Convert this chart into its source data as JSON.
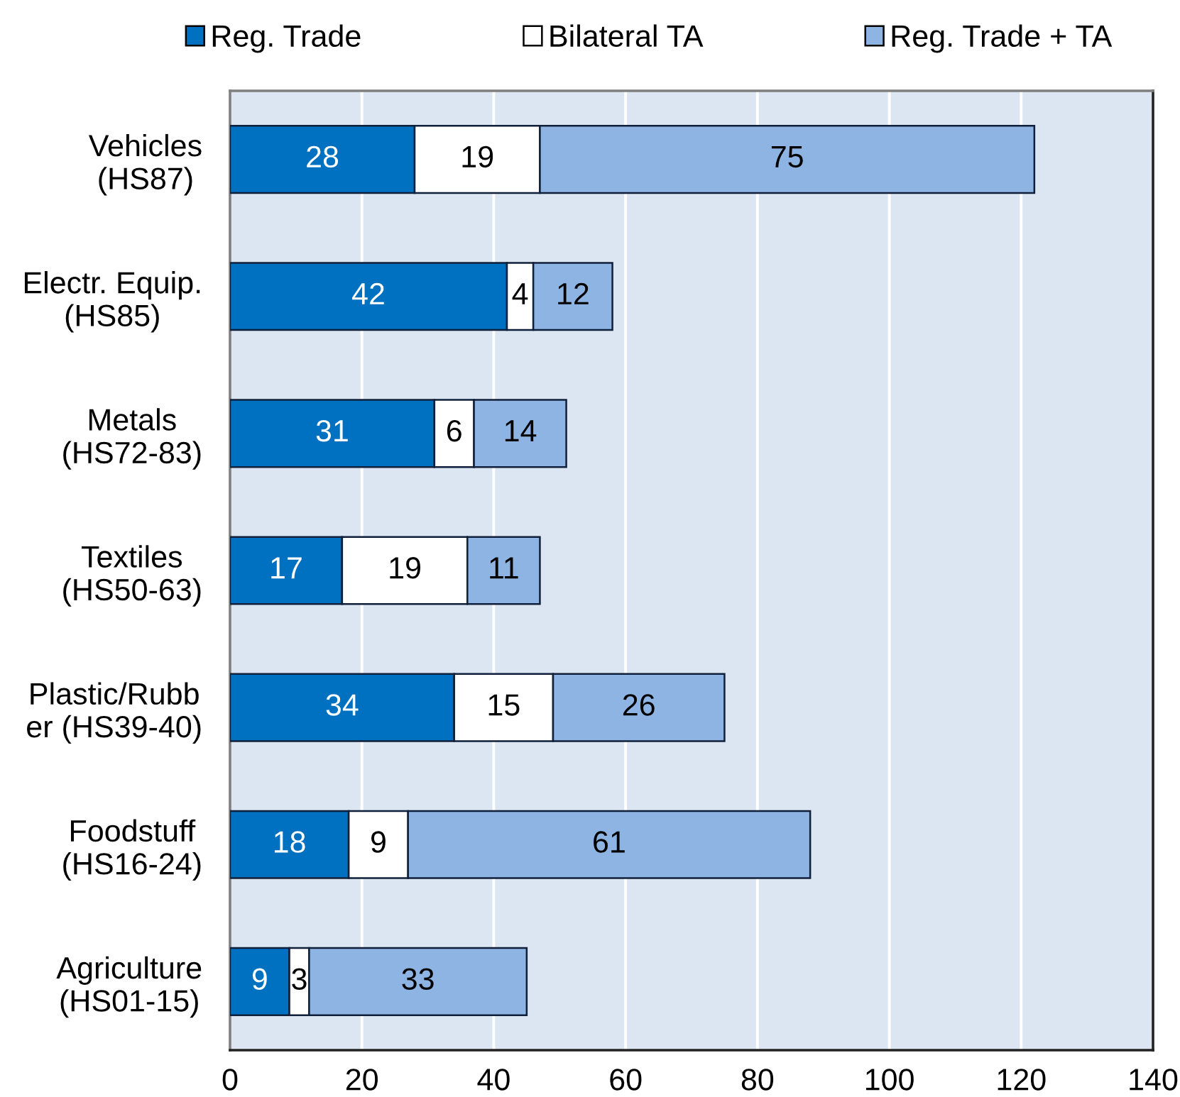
{
  "chart_data": {
    "type": "bar",
    "orientation": "horizontal",
    "stacked": true,
    "categories": [
      "Vehicles\n(HS87)",
      "Electr. Equip.\n(HS85)",
      "Metals\n(HS72-83)",
      "Textiles\n(HS50-63)",
      "Plastic/Rubb\ner (HS39-40)",
      "Foodstuff\n(HS16-24)",
      "Agriculture\n(HS01-15)"
    ],
    "series": [
      {
        "name": "Reg. Trade",
        "color": "#0070c0",
        "values": [
          28,
          42,
          31,
          17,
          34,
          18,
          9
        ]
      },
      {
        "name": "Bilateral TA",
        "color": "#ffffff",
        "values": [
          19,
          4,
          6,
          19,
          15,
          9,
          3
        ]
      },
      {
        "name": "Reg. Trade + TA",
        "color": "#8eb4e3",
        "values": [
          75,
          12,
          14,
          11,
          26,
          61,
          33
        ]
      }
    ],
    "xlim": [
      0,
      140
    ],
    "xticks": [
      0,
      20,
      40,
      60,
      80,
      100,
      120,
      140
    ],
    "grid": "x",
    "legend": "top",
    "data_labels": true
  }
}
